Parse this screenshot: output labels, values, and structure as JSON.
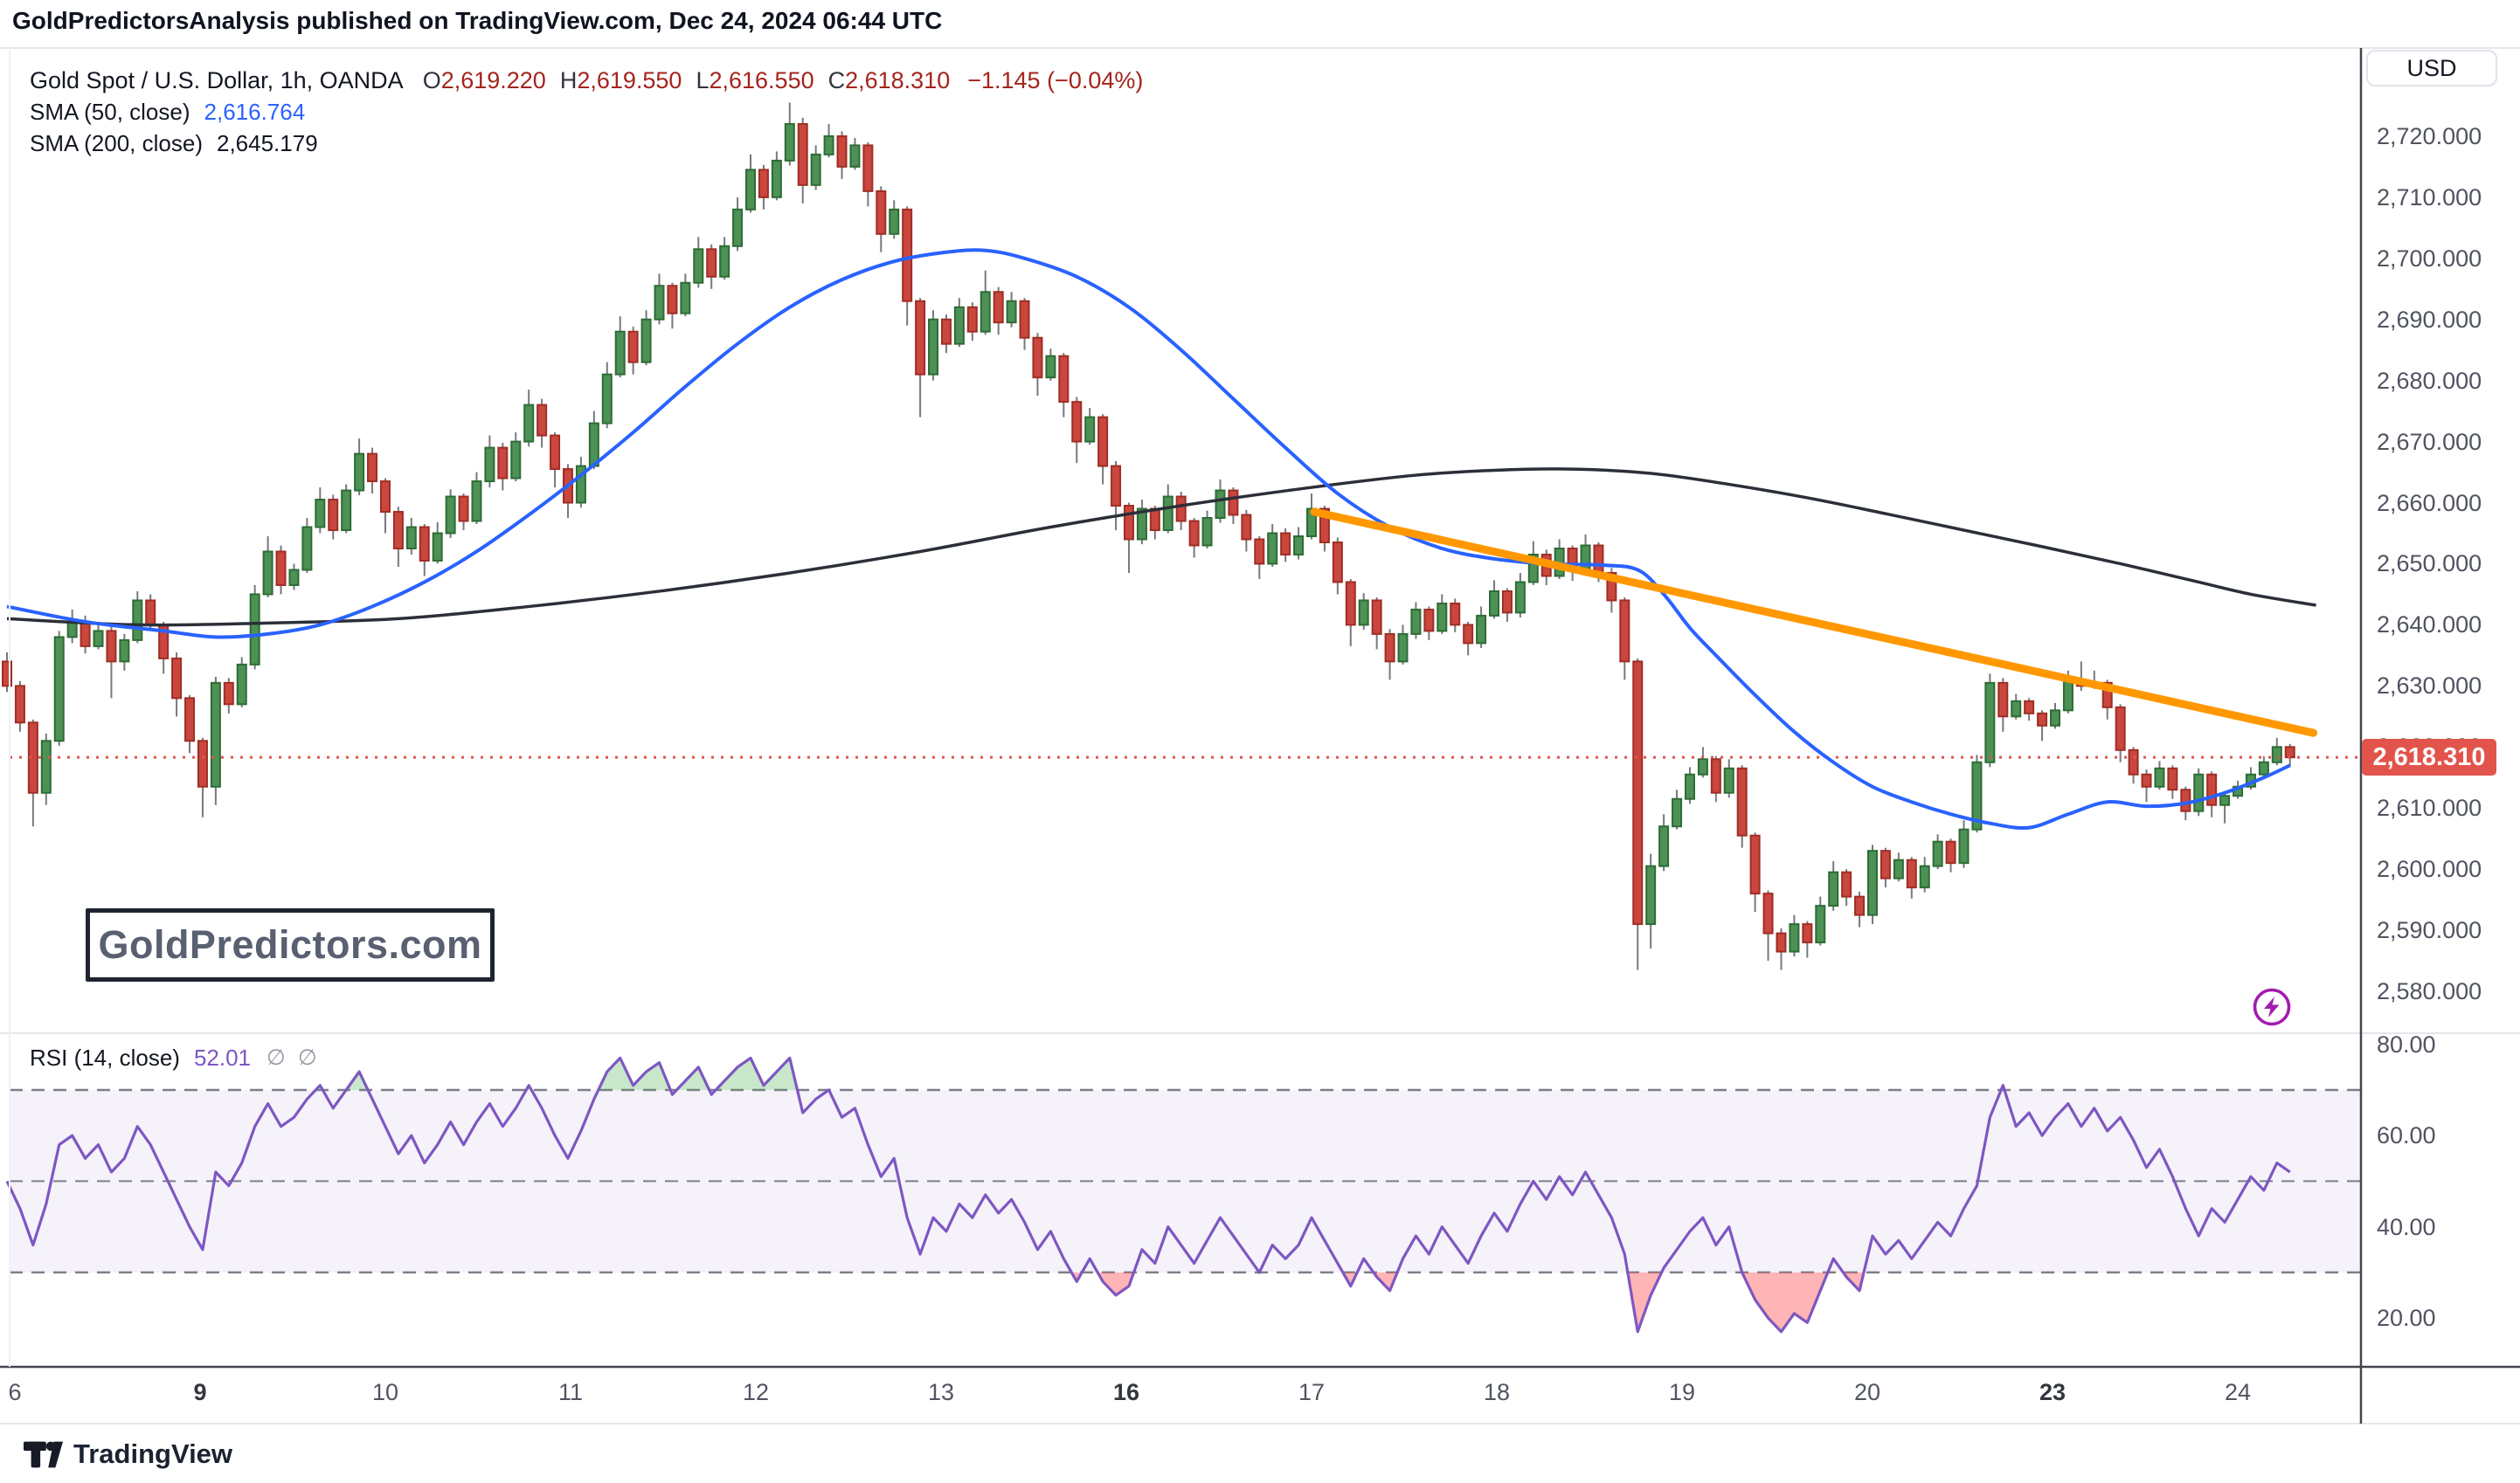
{
  "header": {
    "publish_text": "GoldPredictorsAnalysis published on TradingView.com, Dec 24, 2024 06:44 UTC"
  },
  "legend": {
    "symbol": "Gold Spot / U.S. Dollar, 1h, OANDA",
    "ohlc": [
      {
        "k": "O",
        "v": "2,619.220"
      },
      {
        "k": "H",
        "v": "2,619.550"
      },
      {
        "k": "L",
        "v": "2,616.550"
      },
      {
        "k": "C",
        "v": "2,618.310"
      }
    ],
    "change": "−1.145 (−0.04%)",
    "sma50": {
      "label": "SMA (50, close)",
      "value": "2,616.764"
    },
    "sma200": {
      "label": "SMA (200, close)",
      "value": "2,645.179"
    }
  },
  "rsi": {
    "label": "RSI (14, close)",
    "value": "52.01",
    "ghost1": "∅",
    "ghost2": "∅"
  },
  "watermark": {
    "text": "GoldPredictors.com"
  },
  "footer": {
    "logo_text": "TradingView"
  },
  "price_axis": {
    "currency": "USD",
    "labels": [
      2720,
      2710,
      2700,
      2690,
      2680,
      2670,
      2660,
      2650,
      2640,
      2630,
      2620,
      2610,
      2600,
      2590,
      2580
    ],
    "last_price_label": "2,618.310",
    "last_price": 2618.31
  },
  "rsi_axis": {
    "labels": [
      80,
      60,
      40,
      20
    ]
  },
  "time_axis": {
    "ticks": [
      {
        "label": "6",
        "bar": 0.6,
        "bold": false
      },
      {
        "label": "9",
        "bar": 14.8,
        "bold": true
      },
      {
        "label": "10",
        "bar": 29,
        "bold": false
      },
      {
        "label": "11",
        "bar": 43.2,
        "bold": false
      },
      {
        "label": "12",
        "bar": 57.4,
        "bold": false
      },
      {
        "label": "13",
        "bar": 71.6,
        "bold": false
      },
      {
        "label": "16",
        "bar": 85.8,
        "bold": true
      },
      {
        "label": "17",
        "bar": 100,
        "bold": false
      },
      {
        "label": "18",
        "bar": 114.2,
        "bold": false
      },
      {
        "label": "19",
        "bar": 128.4,
        "bold": false
      },
      {
        "label": "20",
        "bar": 142.6,
        "bold": false
      },
      {
        "label": "23",
        "bar": 156.8,
        "bold": true
      },
      {
        "label": "24",
        "bar": 171,
        "bold": false
      }
    ]
  },
  "colors": {
    "up_fill": "#4d9156",
    "up_border": "#2e6c35",
    "down_fill": "#c9473e",
    "down_border": "#9f2e25",
    "wick": "#76797e",
    "sma50": "#2962FF",
    "sma200": "#2b2f38",
    "trendline": "#ff9800",
    "rsi_line": "#7E57C2",
    "rsi_band_fill": "#7E57C2",
    "rsi_overbought": "#4CAF50",
    "rsi_oversold": "#ff6b6b",
    "dashed": "#7b7f8a",
    "price_line": "#e2544b",
    "frame_light": "#e4e6eb",
    "frame_dark": "#43464d",
    "bolt": "#a21caf"
  },
  "chart_data": {
    "type": "candlestick-with-rsi",
    "title": "Gold Spot / U.S. Dollar, 1h, OANDA",
    "price_range": [
      2574,
      2734
    ],
    "rsi_range": [
      9.3,
      81.1
    ],
    "first_open": 2634,
    "candles_format": [
      "close",
      "upper_wick_extension",
      "lower_wick_extension"
    ],
    "candles": [
      [
        2630,
        1.5,
        1
      ],
      [
        2624,
        0.8,
        1.5
      ],
      [
        2612.5,
        0.5,
        5.5
      ],
      [
        2621,
        1.2,
        2
      ],
      [
        2638,
        1,
        0.8
      ],
      [
        2640.5,
        2,
        1
      ],
      [
        2636.5,
        1,
        1.2
      ],
      [
        2639,
        1.5,
        0.5
      ],
      [
        2634,
        0.8,
        6
      ],
      [
        2637.5,
        1,
        1.5
      ],
      [
        2644,
        1.5,
        0.5
      ],
      [
        2640,
        1,
        1
      ],
      [
        2634.5,
        0.5,
        2.5
      ],
      [
        2628,
        1,
        3
      ],
      [
        2621,
        0.5,
        2
      ],
      [
        2613.5,
        0.5,
        5
      ],
      [
        2630.5,
        1,
        3
      ],
      [
        2627,
        0.8,
        1.5
      ],
      [
        2633.5,
        1.2,
        0.5
      ],
      [
        2645,
        1.5,
        0.8
      ],
      [
        2652,
        2.5,
        0.5
      ],
      [
        2646.5,
        1,
        1.5
      ],
      [
        2649,
        1,
        0.8
      ],
      [
        2656,
        1.5,
        0.5
      ],
      [
        2660.5,
        2,
        1
      ],
      [
        2655.5,
        0.8,
        1.5
      ],
      [
        2662,
        1,
        0.5
      ],
      [
        2668,
        2.5,
        0.8
      ],
      [
        2663.5,
        1,
        2
      ],
      [
        2658.5,
        0.5,
        3.5
      ],
      [
        2652.5,
        0.8,
        3
      ],
      [
        2656,
        1.5,
        1
      ],
      [
        2650.5,
        0.5,
        2.5
      ],
      [
        2655,
        1.8,
        0.5
      ],
      [
        2661,
        1.2,
        0.8
      ],
      [
        2657,
        0.5,
        1.5
      ],
      [
        2663.5,
        1.5,
        0.5
      ],
      [
        2669,
        2,
        1
      ],
      [
        2664,
        0.8,
        2
      ],
      [
        2670,
        1.5,
        0.5
      ],
      [
        2676,
        2.5,
        0.8
      ],
      [
        2671,
        1,
        2
      ],
      [
        2665.5,
        0.5,
        3
      ],
      [
        2660,
        0.8,
        2.5
      ],
      [
        2666,
        1.5,
        0.8
      ],
      [
        2673,
        2,
        0.5
      ],
      [
        2681,
        2,
        0.8
      ],
      [
        2688,
        2.5,
        0.5
      ],
      [
        2683,
        0.8,
        2
      ],
      [
        2690,
        1.5,
        0.5
      ],
      [
        2695.5,
        2,
        0.8
      ],
      [
        2691,
        0.5,
        2.5
      ],
      [
        2696,
        1.5,
        0.5
      ],
      [
        2701.5,
        2,
        0.8
      ],
      [
        2697,
        0.8,
        2
      ],
      [
        2702,
        1.5,
        0.5
      ],
      [
        2708,
        2,
        0.8
      ],
      [
        2714.5,
        2.5,
        0.5
      ],
      [
        2710,
        0.8,
        2
      ],
      [
        2716,
        1.5,
        0.5
      ],
      [
        2722,
        3.5,
        0.8
      ],
      [
        2712,
        1,
        3
      ],
      [
        2717,
        1.5,
        0.8
      ],
      [
        2720,
        2,
        0.5
      ],
      [
        2715,
        0.8,
        2
      ],
      [
        2718.5,
        1.2,
        0.5
      ],
      [
        2711,
        0.5,
        2.5
      ],
      [
        2704,
        0.8,
        3
      ],
      [
        2708,
        1.5,
        0.8
      ],
      [
        2693,
        0.5,
        4
      ],
      [
        2681,
        0.5,
        7
      ],
      [
        2690,
        1.5,
        1
      ],
      [
        2686,
        0.8,
        1.5
      ],
      [
        2692,
        1.5,
        0.5
      ],
      [
        2688,
        0.8,
        1.5
      ],
      [
        2694.5,
        3.5,
        0.5
      ],
      [
        2689.5,
        0.8,
        2
      ],
      [
        2693,
        1.5,
        0.8
      ],
      [
        2687,
        0.5,
        2
      ],
      [
        2680.5,
        0.8,
        3
      ],
      [
        2684,
        1.2,
        0.5
      ],
      [
        2676.5,
        0.5,
        2.5
      ],
      [
        2670,
        0.8,
        3.5
      ],
      [
        2674,
        1.5,
        0.5
      ],
      [
        2666,
        0.5,
        3
      ],
      [
        2659.5,
        0.8,
        4
      ],
      [
        2654,
        0.5,
        5.5
      ],
      [
        2659,
        1.5,
        0.8
      ],
      [
        2655.5,
        0.5,
        1.5
      ],
      [
        2661,
        2,
        0.5
      ],
      [
        2657,
        0.8,
        1.5
      ],
      [
        2653,
        0.5,
        2
      ],
      [
        2657.5,
        1.2,
        0.5
      ],
      [
        2662,
        1.8,
        0.8
      ],
      [
        2658,
        0.5,
        1.5
      ],
      [
        2654,
        0.8,
        2
      ],
      [
        2650,
        0.5,
        2.5
      ],
      [
        2655,
        1.5,
        0.5
      ],
      [
        2651.5,
        0.8,
        1.2
      ],
      [
        2654.5,
        1.5,
        0.8
      ],
      [
        2659,
        2.5,
        0.5
      ],
      [
        2653.5,
        0.5,
        1.5
      ],
      [
        2647,
        0.8,
        2
      ],
      [
        2640,
        0.5,
        3.5
      ],
      [
        2644,
        1.2,
        0.8
      ],
      [
        2638.5,
        0.5,
        2.5
      ],
      [
        2634,
        0.8,
        3
      ],
      [
        2638.5,
        1.5,
        0.5
      ],
      [
        2642.5,
        1.2,
        0.8
      ],
      [
        2639,
        0.5,
        1.5
      ],
      [
        2643.5,
        1.5,
        0.5
      ],
      [
        2640,
        0.8,
        1.2
      ],
      [
        2637,
        0.5,
        2
      ],
      [
        2641.5,
        1.5,
        0.8
      ],
      [
        2645.5,
        1.8,
        0.5
      ],
      [
        2642,
        0.5,
        1.5
      ],
      [
        2647,
        1.5,
        0.8
      ],
      [
        2651.5,
        2.2,
        0.5
      ],
      [
        2648,
        0.8,
        1.5
      ],
      [
        2652.5,
        1.5,
        0.5
      ],
      [
        2649,
        0.5,
        1.8
      ],
      [
        2653,
        1.8,
        0.5
      ],
      [
        2648.5,
        0.5,
        1.5
      ],
      [
        2644,
        0.8,
        2
      ],
      [
        2634,
        0.5,
        3
      ],
      [
        2591,
        0.5,
        7.5
      ],
      [
        2600.5,
        2,
        4
      ],
      [
        2607,
        2,
        0.8
      ],
      [
        2611.5,
        1.5,
        0.5
      ],
      [
        2615.5,
        1.2,
        0.8
      ],
      [
        2618,
        2,
        0.5
      ],
      [
        2612.5,
        0.5,
        1.5
      ],
      [
        2616.5,
        1.5,
        0.8
      ],
      [
        2605.5,
        0.5,
        2
      ],
      [
        2596,
        0.5,
        3
      ],
      [
        2589.5,
        0.5,
        4.5
      ],
      [
        2586.5,
        0.8,
        3
      ],
      [
        2591,
        1.5,
        0.8
      ],
      [
        2588,
        0.5,
        2.5
      ],
      [
        2594,
        1.5,
        0.5
      ],
      [
        2599.5,
        1.8,
        0.8
      ],
      [
        2595.5,
        0.5,
        1.5
      ],
      [
        2592.5,
        0.8,
        2
      ],
      [
        2603,
        1,
        1.5
      ],
      [
        2598.5,
        0.5,
        1.5
      ],
      [
        2601.5,
        1.2,
        0.5
      ],
      [
        2597,
        0.5,
        1.8
      ],
      [
        2600.5,
        1.5,
        0.8
      ],
      [
        2604.5,
        1.2,
        0.5
      ],
      [
        2601,
        0.5,
        1.5
      ],
      [
        2606.5,
        1.5,
        0.8
      ],
      [
        2617.5,
        1.2,
        0.5
      ],
      [
        2630.5,
        1.5,
        0.8
      ],
      [
        2625,
        0.8,
        2.5
      ],
      [
        2627.5,
        1.2,
        0.5
      ],
      [
        2625.5,
        0.5,
        1.2
      ],
      [
        2623.5,
        0.5,
        2.5
      ],
      [
        2626,
        1.2,
        0.5
      ],
      [
        2631,
        1.5,
        0.5
      ],
      [
        2630,
        3,
        0.8
      ],
      [
        2630.5,
        2,
        0.5
      ],
      [
        2626.5,
        0.5,
        2
      ],
      [
        2619.5,
        0.5,
        2
      ],
      [
        2615.5,
        0.5,
        1.5
      ],
      [
        2613.5,
        0.8,
        2.5
      ],
      [
        2616.5,
        1.2,
        0.5
      ],
      [
        2613,
        0.5,
        1.5
      ],
      [
        2609.5,
        0.5,
        1.5
      ],
      [
        2615.5,
        1,
        0.8
      ],
      [
        2610.5,
        0.5,
        2
      ],
      [
        2612,
        0.8,
        3
      ],
      [
        2613.5,
        1,
        0.5
      ],
      [
        2615.5,
        1.2,
        0.5
      ],
      [
        2617.5,
        1,
        0.5
      ],
      [
        2620,
        1.5,
        0.5
      ],
      [
        2618.3,
        0.5,
        1.5
      ]
    ],
    "sma50_points": [
      [
        0,
        2643
      ],
      [
        6,
        2640.5
      ],
      [
        12,
        2639
      ],
      [
        16,
        2638
      ],
      [
        20,
        2638.5
      ],
      [
        24,
        2640
      ],
      [
        28,
        2643
      ],
      [
        32,
        2647
      ],
      [
        36,
        2652
      ],
      [
        40,
        2658
      ],
      [
        44,
        2664.5
      ],
      [
        48,
        2671.5
      ],
      [
        52,
        2679
      ],
      [
        56,
        2686
      ],
      [
        60,
        2692
      ],
      [
        64,
        2696.5
      ],
      [
        68,
        2699.5
      ],
      [
        72,
        2701
      ],
      [
        75,
        2701.3
      ],
      [
        78,
        2700
      ],
      [
        82,
        2697
      ],
      [
        86,
        2692
      ],
      [
        90,
        2685
      ],
      [
        94,
        2677
      ],
      [
        98,
        2669
      ],
      [
        102,
        2661.5
      ],
      [
        106,
        2656
      ],
      [
        110,
        2652.5
      ],
      [
        114,
        2650.8
      ],
      [
        118,
        2650
      ],
      [
        122,
        2649.8
      ],
      [
        125,
        2649
      ],
      [
        127,
        2645
      ],
      [
        129,
        2639.5
      ],
      [
        131,
        2635
      ],
      [
        134,
        2628.5
      ],
      [
        137,
        2622.5
      ],
      [
        140,
        2617.5
      ],
      [
        143,
        2613.5
      ],
      [
        146,
        2611
      ],
      [
        149,
        2609
      ],
      [
        152,
        2607.5
      ],
      [
        155,
        2606.8
      ],
      [
        158,
        2609
      ],
      [
        161,
        2611
      ],
      [
        164,
        2610.3
      ],
      [
        167,
        2610.8
      ],
      [
        170,
        2612.5
      ],
      [
        173,
        2615
      ],
      [
        175,
        2617
      ]
    ],
    "sma200_points": [
      [
        0,
        2641
      ],
      [
        10,
        2640
      ],
      [
        20,
        2640.3
      ],
      [
        30,
        2641
      ],
      [
        40,
        2643
      ],
      [
        50,
        2645.5
      ],
      [
        60,
        2648.5
      ],
      [
        70,
        2652
      ],
      [
        80,
        2656
      ],
      [
        90,
        2659.5
      ],
      [
        100,
        2662.5
      ],
      [
        108,
        2664.5
      ],
      [
        114,
        2665.3
      ],
      [
        120,
        2665.5
      ],
      [
        126,
        2664.8
      ],
      [
        132,
        2663
      ],
      [
        138,
        2660.8
      ],
      [
        144,
        2658.2
      ],
      [
        150,
        2655.5
      ],
      [
        156,
        2652.8
      ],
      [
        162,
        2650
      ],
      [
        168,
        2647
      ],
      [
        172,
        2645
      ],
      [
        177,
        2643.2
      ]
    ],
    "trendline": {
      "from_bar": 100.2,
      "from_price": 2658.5,
      "to_bar": 176.8,
      "to_price": 2622.3
    },
    "rsi_values": [
      50,
      44,
      36,
      45,
      58,
      60,
      55,
      58,
      52,
      55,
      62,
      58,
      52,
      46,
      40,
      35,
      52,
      49,
      54,
      62,
      67,
      62,
      64,
      68,
      71,
      66,
      70,
      74,
      68,
      62,
      56,
      60,
      54,
      58,
      63,
      58,
      63,
      67,
      62,
      66,
      71,
      66,
      60,
      55,
      61,
      68,
      74,
      77,
      71,
      74,
      76,
      69,
      72,
      75,
      69,
      72,
      75,
      77,
      71,
      74,
      77,
      65,
      68,
      70,
      64,
      66,
      58,
      51,
      55,
      42,
      34,
      42,
      39,
      45,
      42,
      47,
      43,
      46,
      41,
      35,
      39,
      33,
      28,
      33,
      28,
      25,
      27,
      35,
      32,
      40,
      36,
      32,
      37,
      42,
      38,
      34,
      30,
      36,
      33,
      36,
      42,
      37,
      32,
      27,
      33,
      29,
      26,
      33,
      38,
      34,
      40,
      36,
      32,
      38,
      43,
      39,
      45,
      50,
      46,
      51,
      47,
      52,
      47,
      42,
      34,
      17,
      25,
      31,
      35,
      39,
      42,
      36,
      40,
      30,
      24,
      20,
      17,
      21,
      19,
      26,
      33,
      29,
      26,
      38,
      34,
      37,
      33,
      37,
      41,
      38,
      44,
      49,
      64,
      71,
      62,
      65,
      60,
      64,
      67,
      62,
      66,
      61,
      64,
      59,
      53,
      57,
      51,
      44,
      38,
      44,
      41,
      46,
      51,
      48,
      54,
      52
    ],
    "rsi_bands": {
      "overbought": 70,
      "middle": 50,
      "oversold": 30
    },
    "legend_note": "legend top-left of each pane; grid off; price scale right"
  }
}
